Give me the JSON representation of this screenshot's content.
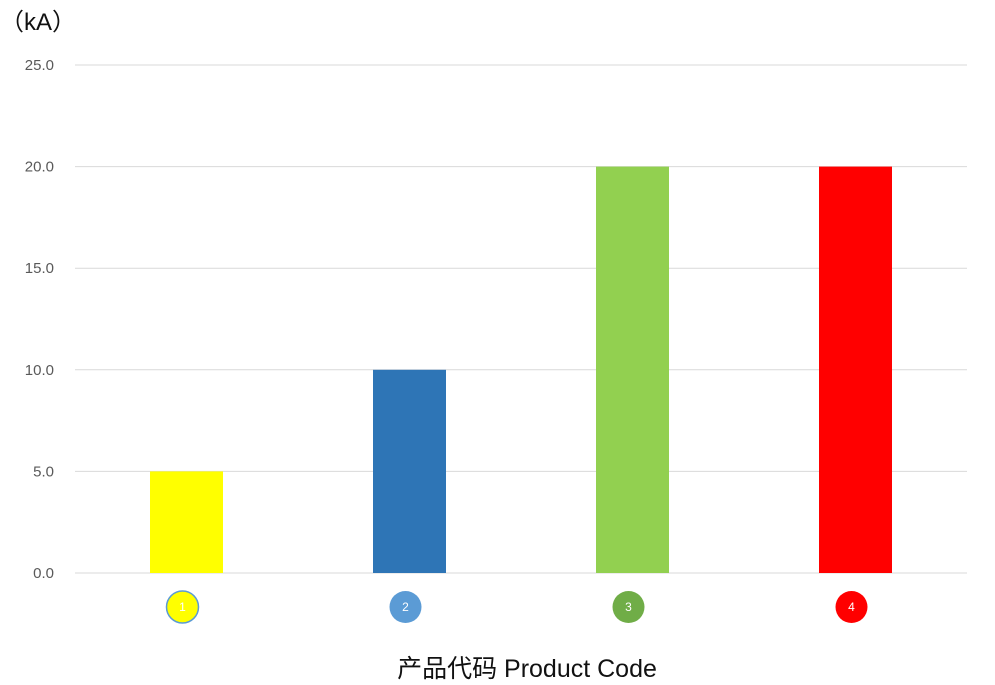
{
  "chart_data": {
    "type": "bar",
    "title": "",
    "unit_label": "（kA）",
    "xlabel": "产品代码 Product Code",
    "ylabel": "",
    "ylim": [
      0,
      25
    ],
    "y_ticks": [
      "0.0",
      "5.0",
      "10.0",
      "15.0",
      "20.0",
      "25.0"
    ],
    "categories": [
      "1",
      "2",
      "3",
      "4"
    ],
    "values": [
      5,
      10,
      20,
      20
    ],
    "bar_colors": [
      "#ffff00",
      "#2e75b6",
      "#92d050",
      "#ff0000"
    ],
    "badge_colors": [
      "#ffff00",
      "#5b9bd5",
      "#70ad47",
      "#ff0000"
    ],
    "badge_text_colors": [
      "#ffffff",
      "#ffffff",
      "#ffffff",
      "#ffffff"
    ],
    "grid": true,
    "legend": "none"
  }
}
